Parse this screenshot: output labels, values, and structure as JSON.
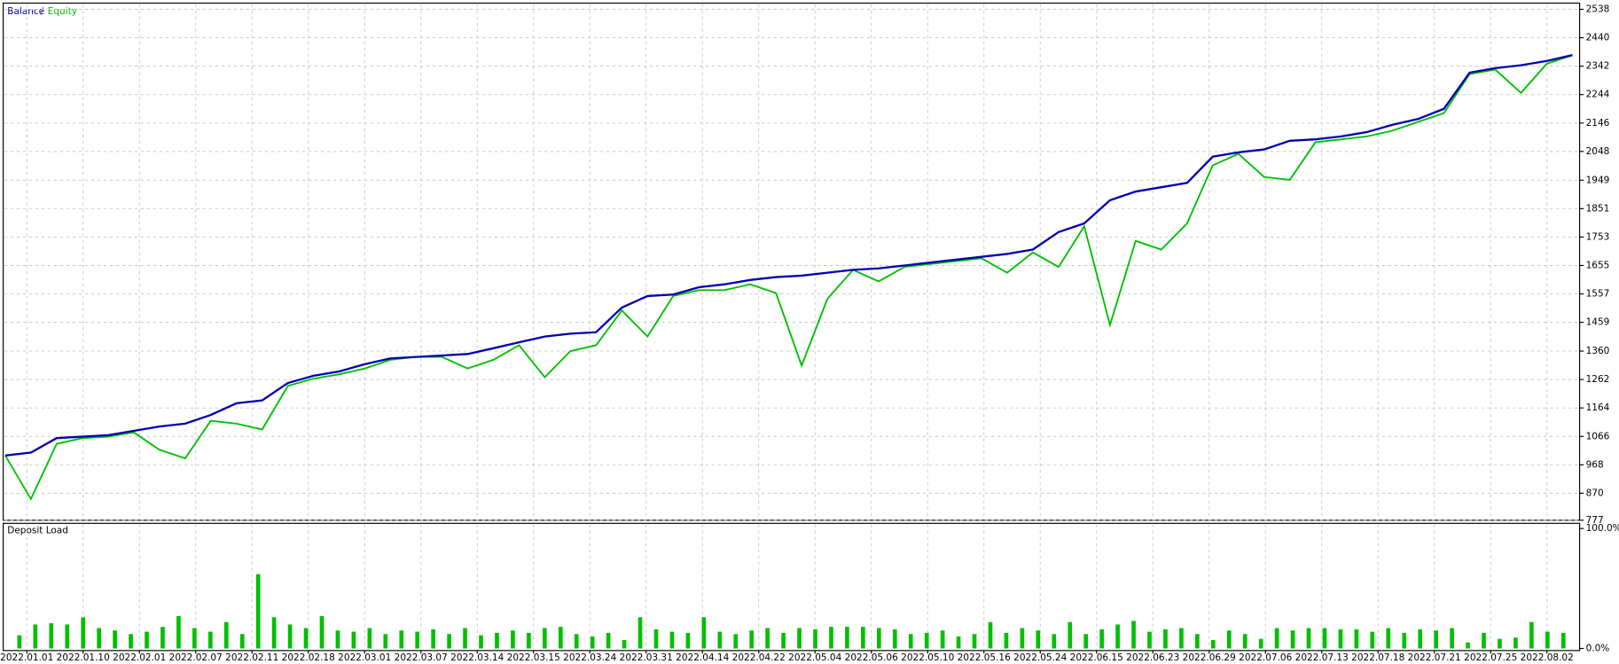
{
  "chart_data": [
    {
      "type": "line",
      "legend_separator": "/",
      "series": [
        {
          "name": "Balance",
          "color": "#0000b4",
          "values": [
            1000,
            1010,
            1060,
            1065,
            1070,
            1085,
            1100,
            1110,
            1140,
            1180,
            1190,
            1250,
            1275,
            1290,
            1315,
            1335,
            1340,
            1345,
            1350,
            1370,
            1390,
            1410,
            1420,
            1425,
            1510,
            1550,
            1555,
            1580,
            1590,
            1605,
            1615,
            1620,
            1630,
            1640,
            1645,
            1655,
            1665,
            1675,
            1685,
            1695,
            1710,
            1770,
            1800,
            1880,
            1910,
            1925,
            1940,
            2030,
            2045,
            2055,
            2085,
            2090,
            2100,
            2115,
            2140,
            2160,
            2195,
            2320,
            2335,
            2345,
            2360,
            2380
          ]
        },
        {
          "name": "Equity",
          "color": "#00c000",
          "values": [
            1000,
            850,
            1040,
            1060,
            1065,
            1080,
            1020,
            990,
            1120,
            1110,
            1090,
            1240,
            1265,
            1280,
            1300,
            1330,
            1340,
            1340,
            1300,
            1330,
            1380,
            1270,
            1360,
            1380,
            1500,
            1410,
            1550,
            1570,
            1570,
            1590,
            1560,
            1310,
            1540,
            1640,
            1600,
            1650,
            1660,
            1670,
            1680,
            1630,
            1700,
            1650,
            1790,
            1450,
            1740,
            1710,
            1800,
            2000,
            2040,
            1960,
            1950,
            2080,
            2090,
            2100,
            2120,
            2150,
            2180,
            2315,
            2330,
            2250,
            2350,
            2380
          ]
        }
      ],
      "ylim": [
        777,
        2538
      ],
      "yticks": [
        777,
        870,
        968,
        1066,
        1164,
        1262,
        1360,
        1459,
        1557,
        1655,
        1753,
        1851,
        1949,
        2048,
        2146,
        2244,
        2342,
        2440,
        2538
      ],
      "grid": true
    },
    {
      "type": "bar",
      "title": "Deposit Load",
      "color": "#00c000",
      "values": [
        11,
        20,
        21,
        20,
        26,
        17,
        15,
        12,
        14,
        18,
        27,
        17,
        14,
        22,
        12,
        62,
        26,
        20,
        17,
        27,
        15,
        14,
        17,
        12,
        15,
        14,
        16,
        12,
        17,
        11,
        13,
        15,
        13,
        17,
        18,
        12,
        10,
        13,
        7,
        26,
        16,
        14,
        13,
        26,
        14,
        12,
        15,
        17,
        13,
        17,
        16,
        18,
        18,
        18,
        17,
        16,
        12,
        13,
        15,
        10,
        12,
        22,
        13,
        17,
        15,
        12,
        22,
        12,
        16,
        20,
        23,
        14,
        16,
        17,
        12,
        7,
        15,
        12,
        8,
        17,
        15,
        17,
        17,
        16,
        16,
        14,
        17,
        13,
        16,
        15,
        17,
        5,
        13,
        8,
        9,
        22,
        14,
        13
      ],
      "ylim": [
        0,
        100
      ],
      "yticks": [
        {
          "value": 0,
          "label": "0.0%"
        },
        {
          "value": 100,
          "label": "100.0%"
        }
      ],
      "xtick_labels": [
        "2022.01.01",
        "2022.01.10",
        "2022.02.01",
        "2022.02.07",
        "2022.02.11",
        "2022.02.18",
        "2022.03.01",
        "2022.03.07",
        "2022.03.14",
        "2022.03.15",
        "2022.03.24",
        "2022.03.31",
        "2022.04.14",
        "2022.04.22",
        "2022.05.04",
        "2022.05.06",
        "2022.05.10",
        "2022.05.16",
        "2022.05.24",
        "2022.06.15",
        "2022.06.23",
        "2022.06.29",
        "2022.07.06",
        "2022.07.13",
        "2022.07.18",
        "2022.07.21",
        "2022.07.25",
        "2022.08.02"
      ]
    }
  ]
}
